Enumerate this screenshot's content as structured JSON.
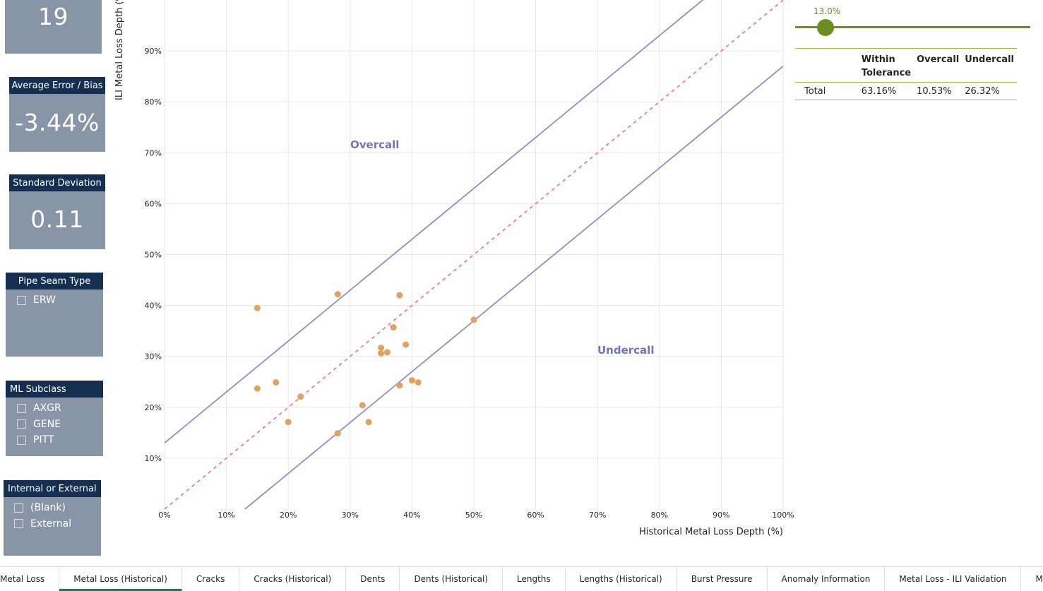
{
  "kpis": {
    "count": {
      "value": "19"
    },
    "average_error": {
      "title": "Average Error / Bias",
      "value": "-3.44%"
    },
    "std_dev": {
      "title": "Standard Deviation",
      "value": "0.11"
    }
  },
  "slicers": {
    "pipe_seam": {
      "title": "Pipe Seam Type",
      "items": [
        "ERW"
      ]
    },
    "ml_subclass": {
      "title": "ML Subclass",
      "items": [
        "AXGR",
        "GENE",
        "PITT"
      ]
    },
    "int_ext": {
      "title": "Internal or External",
      "items": [
        "(Blank)",
        "External"
      ]
    }
  },
  "tolerance_slider": {
    "value": "13.0%"
  },
  "tolerance_table": {
    "headers": [
      "",
      "Within Tolerance",
      "Overcall",
      "Undercall"
    ],
    "row": {
      "label": "Total",
      "within": "63.16%",
      "overcall": "10.53%",
      "undercall": "26.32%"
    }
  },
  "chart_data": {
    "type": "scatter",
    "xlabel": "Historical Metal Loss Depth (%)",
    "ylabel": "ILI Metal Loss Depth (%)",
    "xlim": [
      0,
      100
    ],
    "ylim": [
      0,
      100
    ],
    "x_ticks": [
      "0%",
      "10%",
      "20%",
      "30%",
      "40%",
      "50%",
      "60%",
      "70%",
      "80%",
      "90%",
      "100%"
    ],
    "y_ticks": [
      "10%",
      "20%",
      "30%",
      "40%",
      "50%",
      "60%",
      "70%",
      "80%",
      "90%"
    ],
    "tolerance": 13,
    "region_labels": {
      "overcall": "Overcall",
      "undercall": "Undercall"
    },
    "colors": {
      "points": "#e0a25f",
      "tolerance_lines": "#8b8fcc",
      "unity_line": "#f08080"
    },
    "points": [
      [
        15,
        39.5
      ],
      [
        28,
        42.2
      ],
      [
        38,
        42
      ],
      [
        37,
        35.7
      ],
      [
        39,
        32.3
      ],
      [
        35,
        31.7
      ],
      [
        36,
        30.8
      ],
      [
        35,
        30.6
      ],
      [
        50,
        37.2
      ],
      [
        15,
        23.7
      ],
      [
        18,
        24.9
      ],
      [
        22,
        22.1
      ],
      [
        20,
        17.1
      ],
      [
        28,
        14.9
      ],
      [
        32,
        20.4
      ],
      [
        33,
        17.1
      ],
      [
        38,
        24.3
      ],
      [
        40,
        25.3
      ],
      [
        41,
        24.9
      ]
    ]
  },
  "tabs": {
    "items": [
      "Metal Loss",
      "Metal Loss (Historical)",
      "Cracks",
      "Cracks (Historical)",
      "Dents",
      "Dents (Historical)",
      "Lengths",
      "Lengths (Historical)",
      "Burst Pressure",
      "Anomaly Information",
      "Metal Loss - ILI Validation",
      "Metal Loss - ILI Validation (Historical)"
    ],
    "active_index": 1
  }
}
